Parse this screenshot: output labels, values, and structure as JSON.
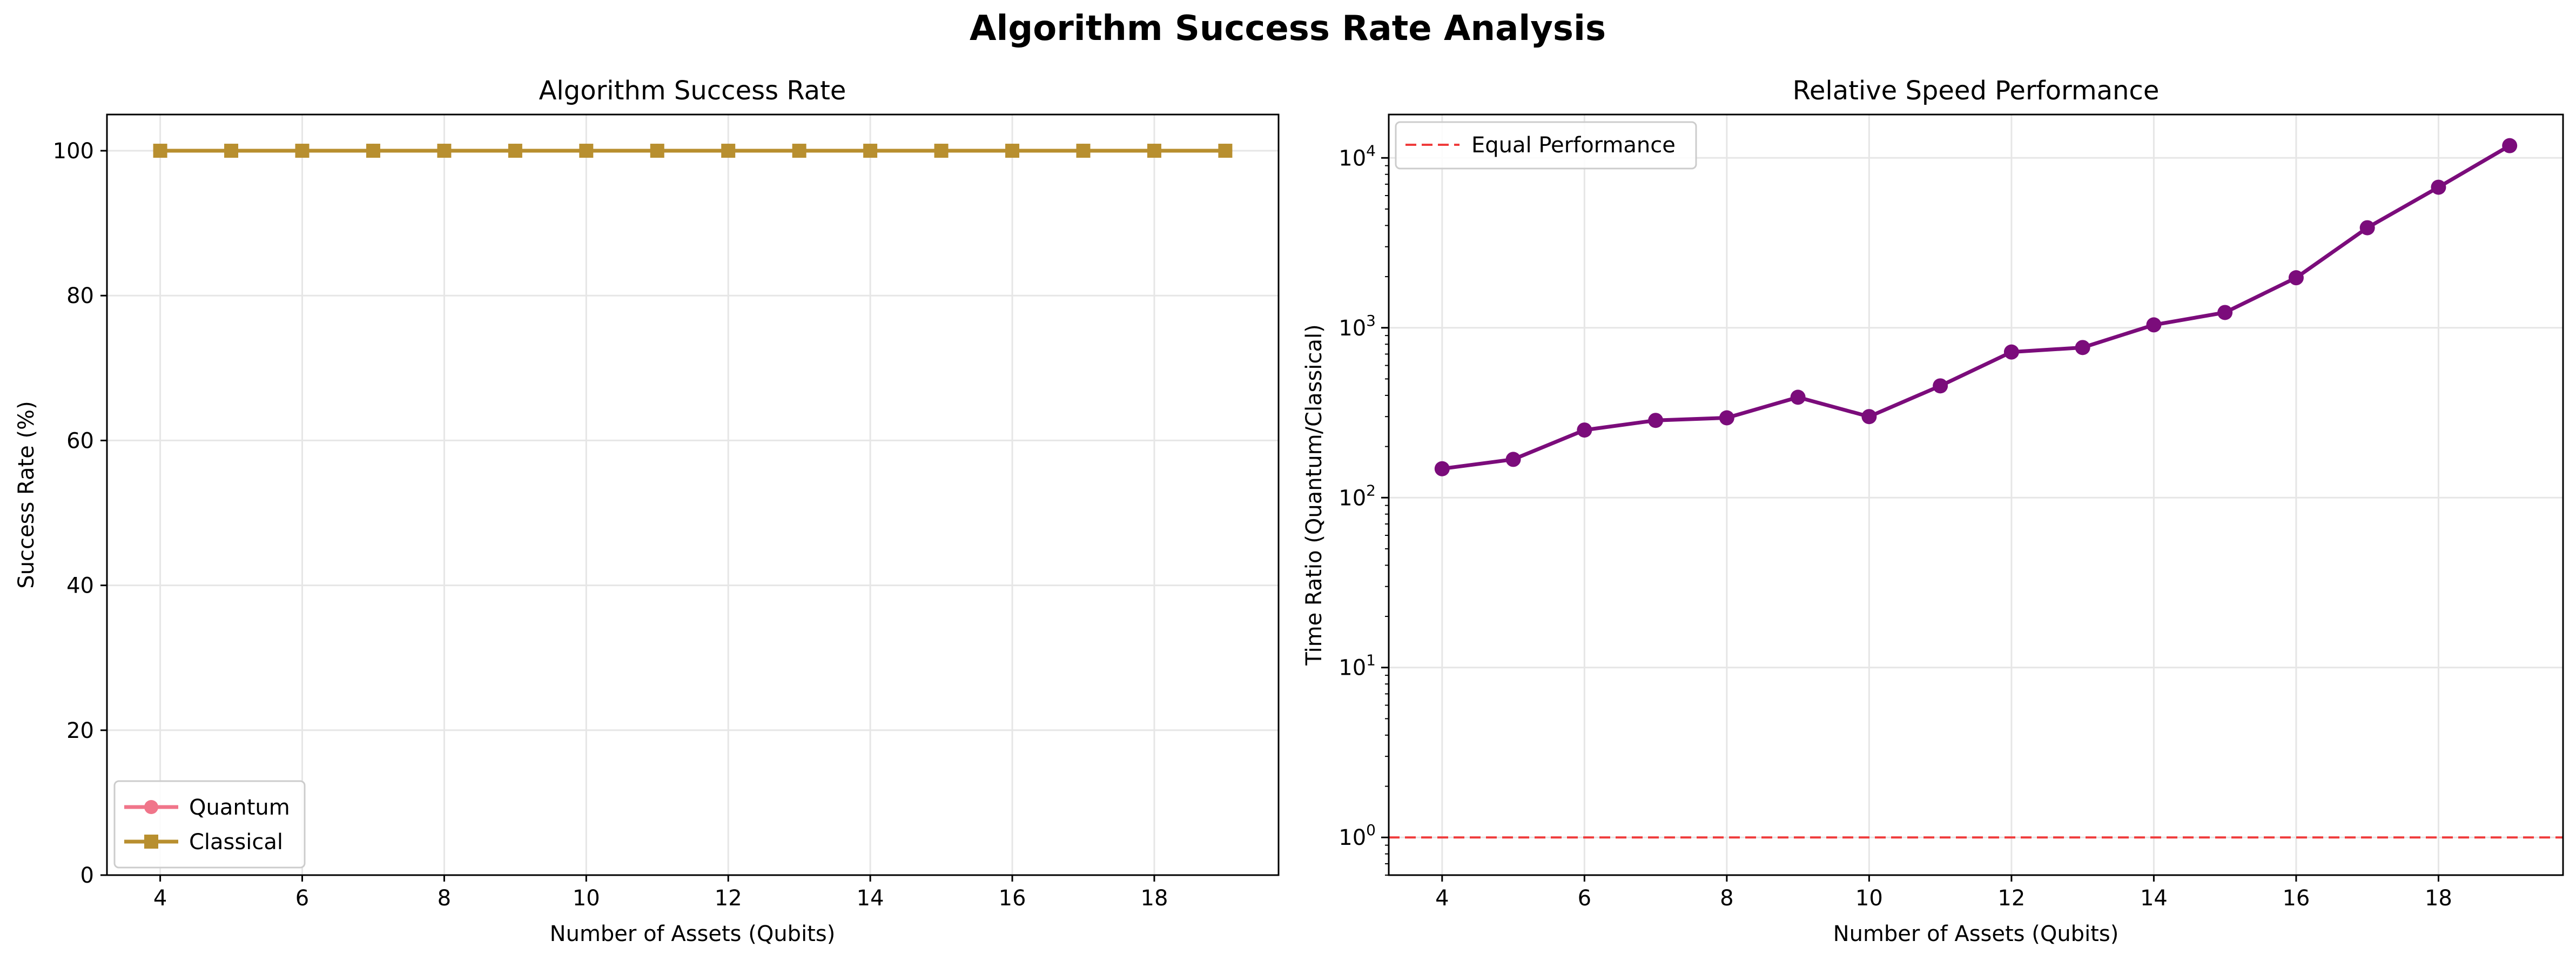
{
  "figure": {
    "suptitle": "Algorithm Success Rate Analysis"
  },
  "chart_data": [
    {
      "type": "line",
      "title": "Algorithm Success Rate",
      "xlabel": "Number of Assets (Qubits)",
      "ylabel": "Success Rate (%)",
      "x": [
        4,
        5,
        6,
        7,
        8,
        9,
        10,
        11,
        12,
        13,
        14,
        15,
        16,
        17,
        18,
        19
      ],
      "xlim": [
        3.25,
        19.75
      ],
      "ylim": [
        0,
        105
      ],
      "xticks": [
        "4",
        "6",
        "8",
        "10",
        "12",
        "14",
        "16",
        "18"
      ],
      "yticks": [
        "0",
        "20",
        "40",
        "60",
        "80",
        "100"
      ],
      "grid": true,
      "legend_position": "lower-left",
      "series": [
        {
          "name": "Quantum",
          "color": "#f0758a",
          "marker": "circle",
          "values": [
            100,
            100,
            100,
            100,
            100,
            100,
            100,
            100,
            100,
            100,
            100,
            100,
            100,
            100,
            100,
            100
          ]
        },
        {
          "name": "Classical",
          "color": "#b88f2f",
          "marker": "square",
          "values": [
            100,
            100,
            100,
            100,
            100,
            100,
            100,
            100,
            100,
            100,
            100,
            100,
            100,
            100,
            100,
            100
          ]
        }
      ]
    },
    {
      "type": "line",
      "title": "Relative Speed Performance",
      "xlabel": "Number of Assets (Qubits)",
      "ylabel": "Time Ratio (Quantum/Classical)",
      "yscale": "log",
      "x": [
        4,
        5,
        6,
        7,
        8,
        9,
        10,
        11,
        12,
        13,
        14,
        15,
        16,
        17,
        18,
        19
      ],
      "xlim": [
        3.25,
        19.75
      ],
      "ylim": [
        0.6,
        18000
      ],
      "xticks": [
        "4",
        "6",
        "8",
        "10",
        "12",
        "14",
        "16",
        "18"
      ],
      "yticks": [
        "10^0",
        "10^1",
        "10^2",
        "10^3",
        "10^4"
      ],
      "grid": true,
      "legend_position": "top-left",
      "series": [
        {
          "name": "",
          "color": "#7b0c7b",
          "marker": "circle",
          "values": [
            148,
            168,
            250,
            285,
            295,
            390,
            300,
            455,
            720,
            765,
            1040,
            1230,
            1970,
            3880,
            6720,
            11800
          ]
        }
      ],
      "reference_line": {
        "name": "Equal Performance",
        "y": 1,
        "color": "#ef3b3b",
        "style": "dashed"
      }
    }
  ]
}
